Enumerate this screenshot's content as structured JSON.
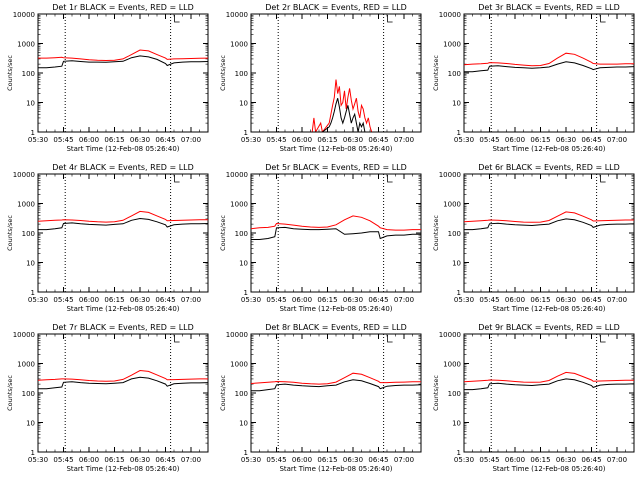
{
  "figure": {
    "style": {
      "events_color": "#000000",
      "lld_color": "#ff0000",
      "event_line_color": "#000000"
    },
    "x_ticks": [
      "05:30",
      "05:45",
      "06:00",
      "06:15",
      "06:30",
      "06:45",
      "07:00"
    ],
    "y_ticks": [
      "1",
      "10",
      "100",
      "1000",
      "10000"
    ],
    "event_line_times": [
      "05:46",
      "06:48"
    ],
    "xlabel": "Start Time (12-Feb-08 05:26:40)",
    "ylabel": "Counts/sec",
    "scale": {
      "y": "log",
      "ylim": [
        1,
        10000
      ],
      "x_range": [
        "05:30",
        "07:10"
      ]
    }
  },
  "chart_data": [
    {
      "type": "line",
      "title": "Det 1r BLACK = Events, RED = LLD",
      "xlabel": "Start Time (12-Feb-08 05:26:40)",
      "ylabel": "Counts/sec",
      "x": [
        "05:30",
        "05:35",
        "05:40",
        "05:44",
        "05:45",
        "05:50",
        "05:55",
        "06:00",
        "06:05",
        "06:10",
        "06:15",
        "06:20",
        "06:25",
        "06:30",
        "06:35",
        "06:40",
        "06:45",
        "06:46",
        "06:50",
        "06:55",
        "07:00",
        "07:05",
        "07:10"
      ],
      "series": [
        {
          "name": "Events",
          "values": [
            150,
            150,
            160,
            170,
            250,
            260,
            245,
            235,
            235,
            230,
            240,
            250,
            330,
            380,
            350,
            290,
            210,
            180,
            220,
            235,
            240,
            240,
            245
          ]
        },
        {
          "name": "LLD",
          "values": [
            320,
            320,
            330,
            340,
            330,
            320,
            300,
            280,
            270,
            265,
            270,
            300,
            420,
            600,
            560,
            420,
            320,
            290,
            300,
            305,
            310,
            315,
            320
          ]
        }
      ]
    },
    {
      "type": "line",
      "title": "Det 2r BLACK = Events, RED = LLD",
      "xlabel": "Start Time (12-Feb-08 05:26:40)",
      "ylabel": "Counts/sec",
      "x": [
        "06:06",
        "06:07",
        "06:08",
        "06:11",
        "06:12",
        "06:16",
        "06:17",
        "06:18",
        "06:19",
        "06:20",
        "06:21",
        "06:22",
        "06:23",
        "06:24",
        "06:25",
        "06:26",
        "06:27",
        "06:28",
        "06:29",
        "06:30",
        "06:31",
        "06:32",
        "06:33",
        "06:34",
        "06:35",
        "06:36",
        "06:37",
        "06:38",
        "06:39",
        "06:40",
        "06:41"
      ],
      "series": [
        {
          "name": "Events",
          "values": [
            1,
            1,
            1,
            1,
            1,
            1.5,
            2,
            3,
            5,
            9,
            14,
            7,
            3,
            2,
            3,
            5,
            8,
            4,
            2,
            3,
            4,
            2,
            1,
            2,
            1.5,
            2,
            1,
            1,
            1,
            1,
            1
          ]
        },
        {
          "name": "LLD",
          "values": [
            1,
            3,
            1,
            2,
            1,
            2,
            4,
            8,
            15,
            60,
            20,
            35,
            8,
            10,
            25,
            6,
            15,
            30,
            12,
            6,
            9,
            14,
            5,
            3,
            8,
            6,
            3,
            2,
            3,
            1.5,
            1
          ]
        }
      ]
    },
    {
      "type": "line",
      "title": "Det 3r BLACK = Events, RED = LLD",
      "xlabel": "Start Time (12-Feb-08 05:26:40)",
      "ylabel": "Counts/sec",
      "x": [
        "05:30",
        "05:35",
        "05:40",
        "05:44",
        "05:45",
        "05:50",
        "05:55",
        "06:00",
        "06:05",
        "06:10",
        "06:15",
        "06:20",
        "06:25",
        "06:30",
        "06:35",
        "06:40",
        "06:45",
        "06:46",
        "06:50",
        "06:55",
        "07:00",
        "07:05",
        "07:10"
      ],
      "series": [
        {
          "name": "Events",
          "values": [
            110,
            110,
            120,
            125,
            170,
            175,
            165,
            155,
            150,
            145,
            150,
            160,
            200,
            240,
            220,
            180,
            140,
            130,
            150,
            155,
            160,
            160,
            165
          ]
        },
        {
          "name": "LLD",
          "values": [
            190,
            200,
            205,
            215,
            225,
            220,
            210,
            195,
            185,
            175,
            180,
            210,
            320,
            470,
            430,
            320,
            230,
            210,
            200,
            200,
            200,
            205,
            205
          ]
        }
      ]
    },
    {
      "type": "line",
      "title": "Det 4r BLACK = Events, RED = LLD",
      "xlabel": "Start Time (12-Feb-08 05:26:40)",
      "ylabel": "Counts/sec",
      "x": [
        "05:30",
        "05:35",
        "05:40",
        "05:44",
        "05:45",
        "05:50",
        "05:55",
        "06:00",
        "06:05",
        "06:10",
        "06:15",
        "06:20",
        "06:25",
        "06:30",
        "06:35",
        "06:40",
        "06:45",
        "06:46",
        "06:50",
        "06:55",
        "07:00",
        "07:05",
        "07:10"
      ],
      "series": [
        {
          "name": "Events",
          "values": [
            130,
            130,
            140,
            150,
            210,
            220,
            205,
            195,
            190,
            185,
            195,
            205,
            270,
            310,
            290,
            240,
            190,
            160,
            190,
            200,
            205,
            205,
            210
          ]
        },
        {
          "name": "LLD",
          "values": [
            250,
            260,
            270,
            275,
            280,
            275,
            265,
            250,
            240,
            235,
            240,
            270,
            380,
            540,
            500,
            380,
            290,
            260,
            265,
            270,
            275,
            280,
            280
          ]
        }
      ]
    },
    {
      "type": "line",
      "title": "Det 5r BLACK = Events, RED = LLD",
      "xlabel": "Start Time (12-Feb-08 05:26:40)",
      "ylabel": "Counts/sec",
      "x": [
        "05:30",
        "05:35",
        "05:40",
        "05:44",
        "05:45",
        "05:50",
        "05:55",
        "06:00",
        "06:05",
        "06:10",
        "06:15",
        "06:20",
        "06:25",
        "06:30",
        "06:35",
        "06:40",
        "06:45",
        "06:46",
        "06:50",
        "06:55",
        "07:00",
        "07:05",
        "07:10"
      ],
      "series": [
        {
          "name": "Events",
          "values": [
            60,
            60,
            65,
            75,
            150,
            155,
            140,
            135,
            130,
            130,
            135,
            140,
            90,
            95,
            100,
            110,
            110,
            65,
            80,
            85,
            85,
            90,
            90
          ]
        },
        {
          "name": "LLD",
          "values": [
            140,
            150,
            155,
            170,
            210,
            200,
            185,
            170,
            160,
            155,
            160,
            190,
            280,
            380,
            340,
            260,
            170,
            150,
            130,
            125,
            125,
            130,
            130
          ]
        }
      ]
    },
    {
      "type": "line",
      "title": "Det 6r BLACK = Events, RED = LLD",
      "xlabel": "Start Time (12-Feb-08 05:26:40)",
      "ylabel": "Counts/sec",
      "x": [
        "05:30",
        "05:35",
        "05:40",
        "05:44",
        "05:45",
        "05:50",
        "05:55",
        "06:00",
        "06:05",
        "06:10",
        "06:15",
        "06:20",
        "06:25",
        "06:30",
        "06:35",
        "06:40",
        "06:45",
        "06:46",
        "06:50",
        "06:55",
        "07:00",
        "07:05",
        "07:10"
      ],
      "series": [
        {
          "name": "Events",
          "values": [
            130,
            130,
            140,
            150,
            205,
            215,
            200,
            190,
            185,
            180,
            190,
            200,
            260,
            300,
            280,
            230,
            180,
            155,
            185,
            195,
            200,
            200,
            205
          ]
        },
        {
          "name": "LLD",
          "values": [
            240,
            250,
            260,
            270,
            275,
            270,
            260,
            245,
            235,
            230,
            235,
            265,
            370,
            520,
            480,
            370,
            280,
            255,
            260,
            265,
            270,
            275,
            275
          ]
        }
      ]
    },
    {
      "type": "line",
      "title": "Det 7r BLACK = Events, RED = LLD",
      "xlabel": "Start Time (12-Feb-08 05:26:40)",
      "ylabel": "Counts/sec",
      "x": [
        "05:30",
        "05:35",
        "05:40",
        "05:44",
        "05:45",
        "05:50",
        "05:55",
        "06:00",
        "06:05",
        "06:10",
        "06:15",
        "06:20",
        "06:25",
        "06:30",
        "06:35",
        "06:40",
        "06:45",
        "06:46",
        "06:50",
        "06:55",
        "07:00",
        "07:05",
        "07:10"
      ],
      "series": [
        {
          "name": "Events",
          "values": [
            140,
            140,
            150,
            160,
            230,
            240,
            225,
            215,
            210,
            205,
            215,
            225,
            300,
            340,
            320,
            260,
            200,
            170,
            205,
            215,
            220,
            220,
            225
          ]
        },
        {
          "name": "LLD",
          "values": [
            270,
            280,
            290,
            300,
            300,
            295,
            280,
            265,
            255,
            250,
            255,
            290,
            400,
            580,
            540,
            410,
            310,
            280,
            285,
            290,
            295,
            300,
            300
          ]
        }
      ]
    },
    {
      "type": "line",
      "title": "Det 8r BLACK = Events, RED = LLD",
      "xlabel": "Start Time (12-Feb-08 05:26:40)",
      "ylabel": "Counts/sec",
      "x": [
        "05:30",
        "05:35",
        "05:40",
        "05:44",
        "05:45",
        "05:50",
        "05:55",
        "06:00",
        "06:05",
        "06:10",
        "06:15",
        "06:20",
        "06:25",
        "06:30",
        "06:35",
        "06:40",
        "06:45",
        "06:46",
        "06:50",
        "06:55",
        "07:00",
        "07:05",
        "07:10"
      ],
      "series": [
        {
          "name": "Events",
          "values": [
            120,
            120,
            130,
            140,
            190,
            200,
            185,
            175,
            170,
            165,
            175,
            185,
            240,
            280,
            260,
            210,
            165,
            140,
            170,
            180,
            185,
            185,
            190
          ]
        },
        {
          "name": "LLD",
          "values": [
            210,
            220,
            230,
            240,
            245,
            240,
            230,
            215,
            205,
            200,
            205,
            235,
            330,
            470,
            430,
            330,
            250,
            225,
            225,
            230,
            235,
            240,
            240
          ]
        }
      ]
    },
    {
      "type": "line",
      "title": "Det 9r BLACK = Events, RED = LLD",
      "xlabel": "Start Time (12-Feb-08 05:26:40)",
      "ylabel": "Counts/sec",
      "x": [
        "05:30",
        "05:35",
        "05:40",
        "05:44",
        "05:45",
        "05:50",
        "05:55",
        "06:00",
        "06:05",
        "06:10",
        "06:15",
        "06:20",
        "06:25",
        "06:30",
        "06:35",
        "06:40",
        "06:45",
        "06:46",
        "06:50",
        "06:55",
        "07:00",
        "07:05",
        "07:10"
      ],
      "series": [
        {
          "name": "Events",
          "values": [
            130,
            130,
            140,
            150,
            205,
            215,
            200,
            190,
            185,
            180,
            190,
            200,
            260,
            300,
            280,
            230,
            180,
            155,
            185,
            195,
            200,
            200,
            205
          ]
        },
        {
          "name": "LLD",
          "values": [
            240,
            250,
            260,
            270,
            275,
            270,
            260,
            245,
            235,
            230,
            235,
            265,
            370,
            500,
            460,
            360,
            275,
            250,
            255,
            260,
            265,
            270,
            270
          ]
        }
      ]
    }
  ]
}
